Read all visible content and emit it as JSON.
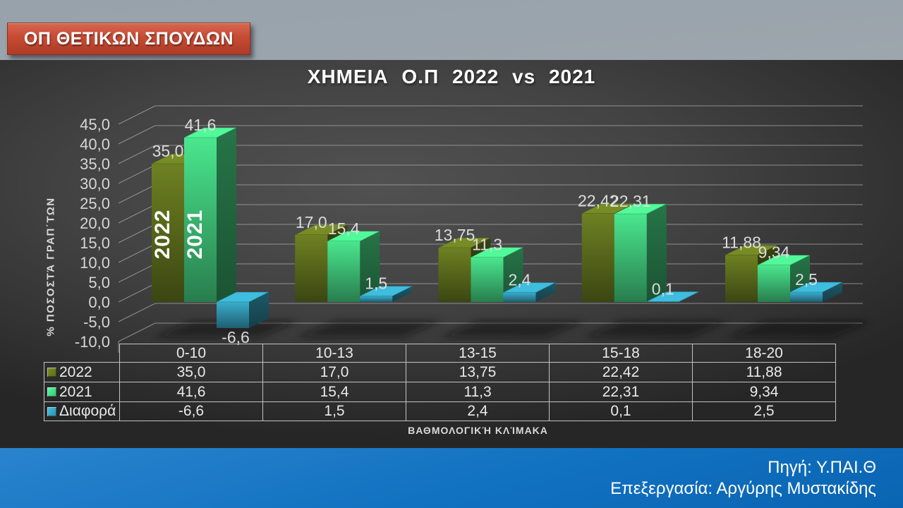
{
  "banner": {
    "label": "ΟΠ ΘΕΤΙΚΩΝ ΣΠΟΥΔΩΝ"
  },
  "chart_data": {
    "type": "bar",
    "projection": "3d",
    "title": "ΧΗΜΕΙΑ Ο.Π 2022 vs 2021",
    "categories": [
      "0-10",
      "10-13",
      "13-15",
      "15-18",
      "18-20"
    ],
    "series": [
      {
        "name": "2022",
        "color": "#5a6a1c",
        "values": [
          35.0,
          17.0,
          13.75,
          22.42,
          11.88
        ],
        "value_labels": [
          "35,0",
          "17,0",
          "13,75",
          "22,42",
          "11,88"
        ]
      },
      {
        "name": "2021",
        "color": "#3dbd74",
        "values": [
          41.6,
          15.4,
          11.3,
          22.31,
          9.34
        ],
        "value_labels": [
          "41,6",
          "15,4",
          "11,3",
          "22,31",
          "9,34"
        ]
      },
      {
        "name": "Διαφορά",
        "color": "#2f8fa8",
        "values": [
          -6.6,
          1.5,
          2.4,
          0.1,
          2.5
        ],
        "value_labels": [
          "-6,6",
          "1,5",
          "2,4",
          "0,1",
          "2,5"
        ]
      }
    ],
    "in_bar_series_labels": [
      "2022",
      "2021"
    ],
    "ylabel": "% ΠΟΣΟΣΤΆ ΓΡΑΠ΄ΤΩΝ",
    "xlabel": "ΒΑΘΜΟΛΟΓΙΚΉ ΚΛΊΜΑΚΑ",
    "ylim": [
      -10,
      45
    ],
    "ytick_step": 5,
    "ytick_labels": [
      "45,0",
      "40,0",
      "35,0",
      "30,0",
      "25,0",
      "20,0",
      "15,0",
      "10,0",
      "5,0",
      "0,0",
      "-5,0",
      "-10,0"
    ],
    "legend_position": "table-left",
    "grid": true
  },
  "footer": {
    "source": "Πηγή: Υ.ΠΑΙ.Θ",
    "credit": "Επεξεργασία: Αργύρης Μυστακίδης",
    "background": "#1172c1"
  }
}
